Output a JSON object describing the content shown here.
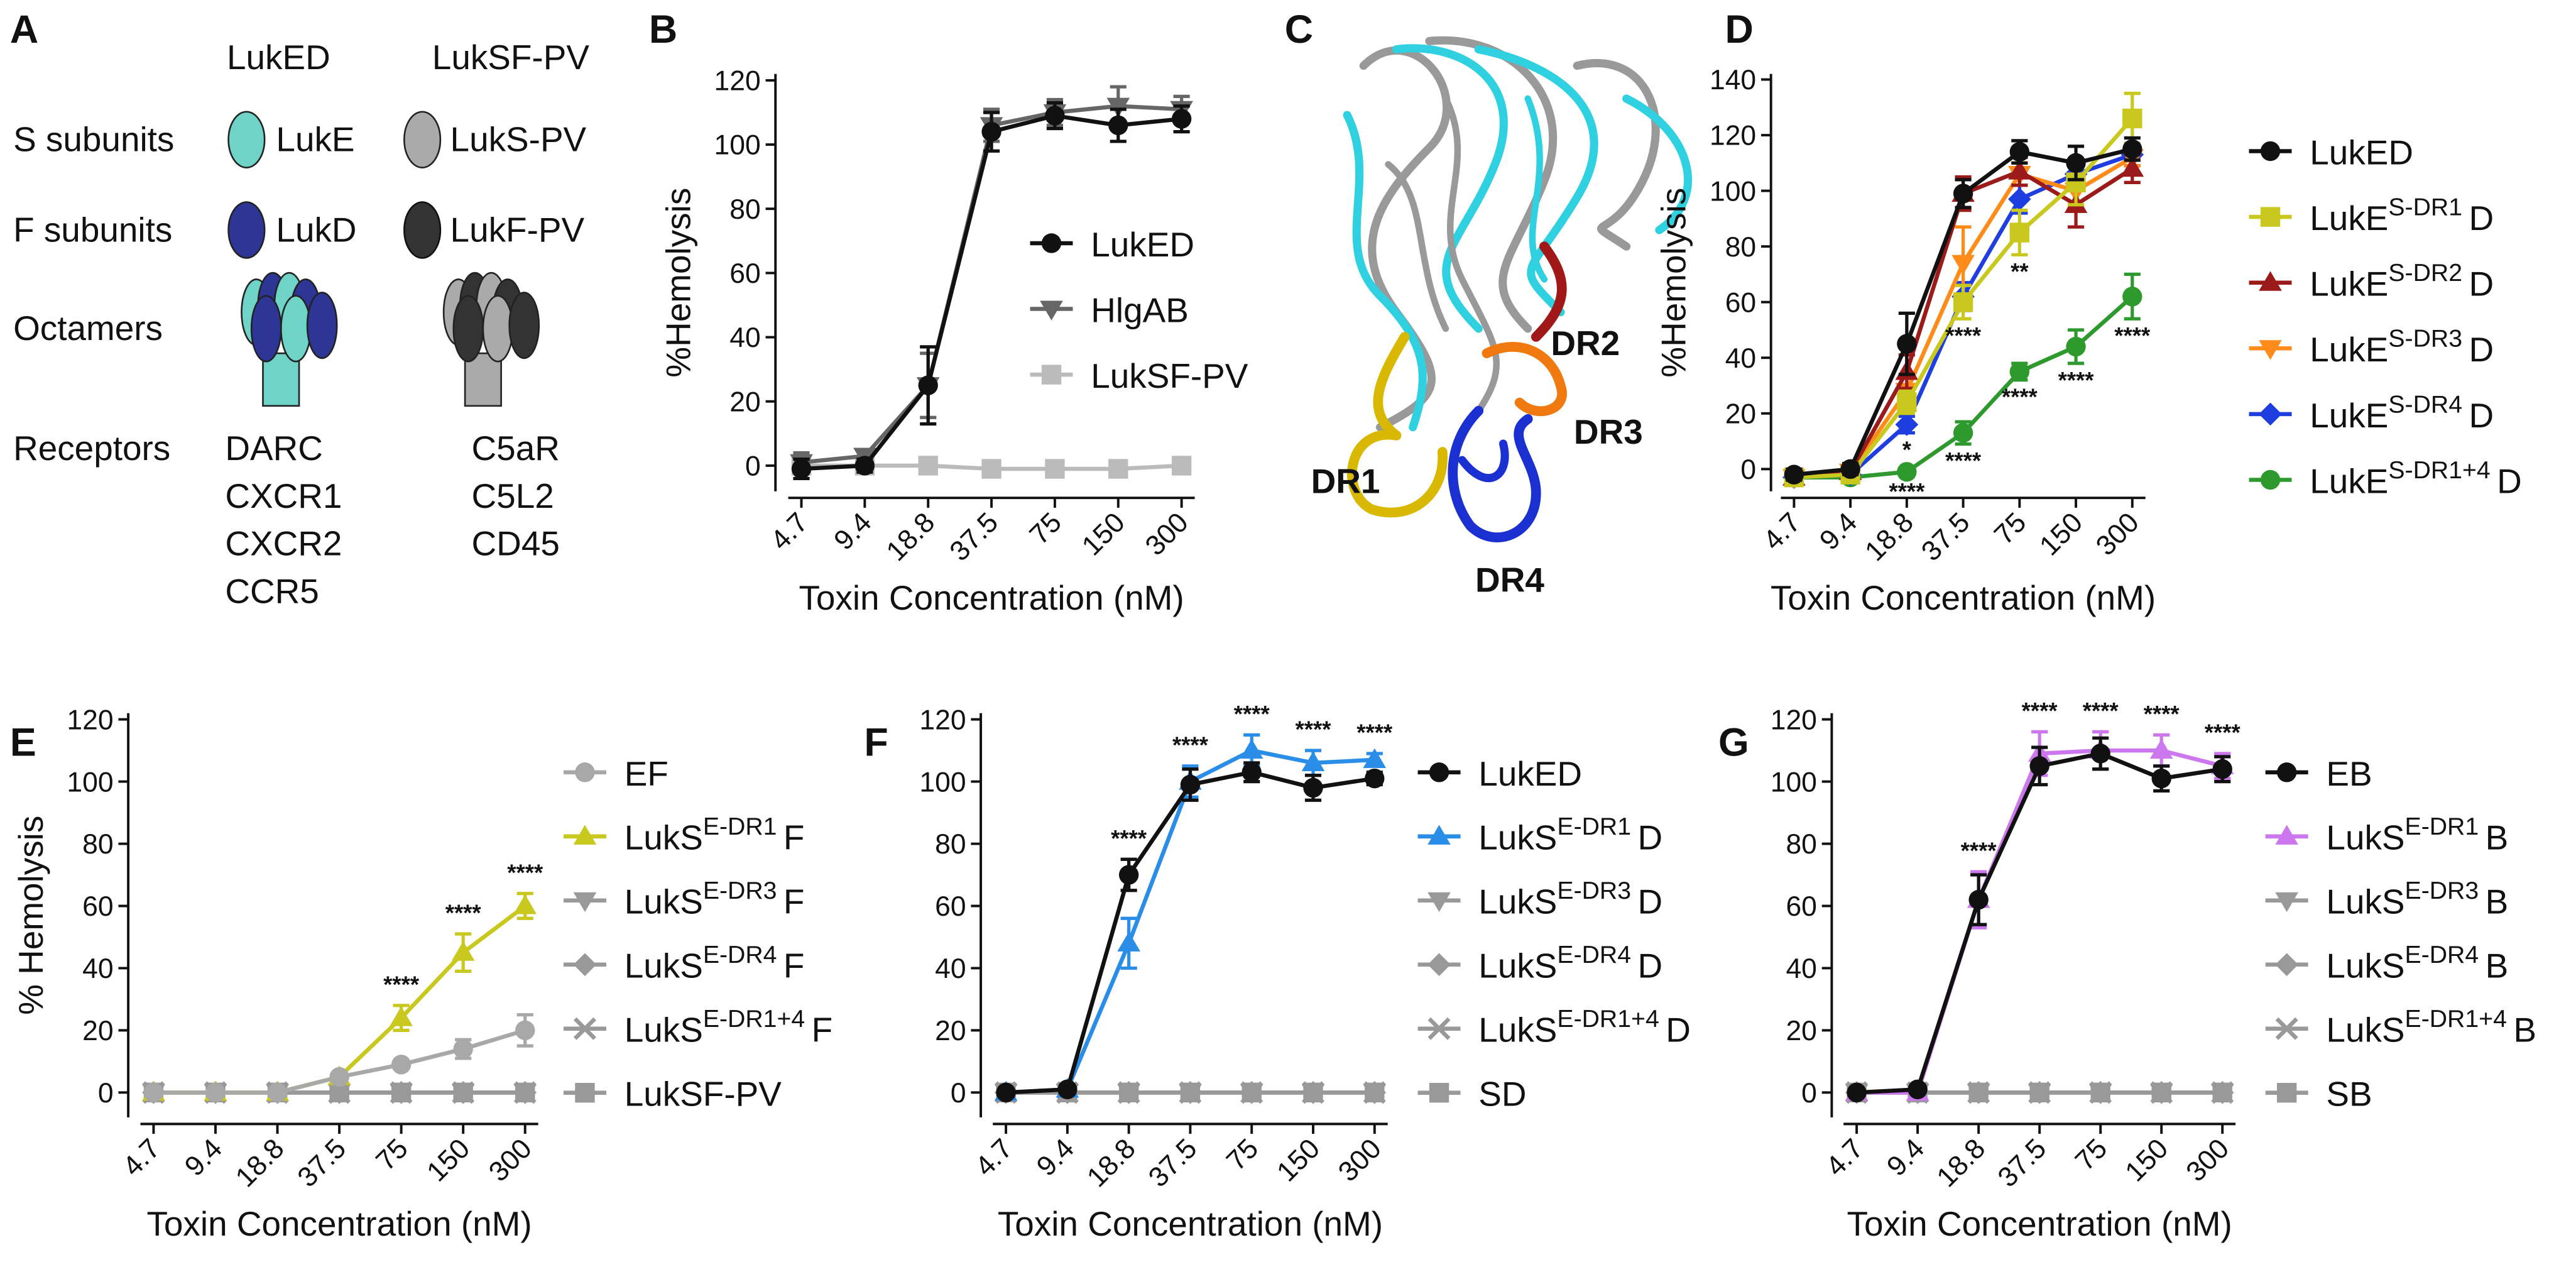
{
  "panel_a": {
    "label": "A",
    "col_heads": [
      "LukED",
      "LukSF-PV"
    ],
    "rows": [
      "S subunits",
      "F subunits",
      "Octamers",
      "Receptors"
    ],
    "s_subunits": [
      "LukE",
      "LukS-PV"
    ],
    "f_subunits": [
      "LukD",
      "LukF-PV"
    ],
    "receptors_ed": [
      "DARC",
      "CXCR1",
      "CXCR2",
      "CCR5"
    ],
    "receptors_sf": [
      "C5aR",
      "C5L2",
      "CD45"
    ]
  },
  "panel_c": {
    "label": "C",
    "regions": [
      "DR1",
      "DR2",
      "DR3",
      "DR4"
    ]
  },
  "chart_data": [
    {
      "panel": "B",
      "type": "line",
      "ylabel": "%Hemolysis",
      "xlabel": "Toxin Concentration (nM)",
      "categories": [
        "4.7",
        "9.4",
        "18.8",
        "37.5",
        "75",
        "150",
        "300"
      ],
      "ylim": [
        -8,
        122
      ],
      "yticks": [
        0,
        20,
        40,
        60,
        80,
        100,
        120
      ],
      "series": [
        {
          "name": "LukED",
          "color": "#111111",
          "marker": "circle",
          "values": [
            -1,
            0,
            25,
            104,
            109,
            106,
            108
          ],
          "errors": [
            3,
            2,
            12,
            6,
            4,
            5,
            4
          ]
        },
        {
          "name": "HlgAB",
          "color": "#666666",
          "marker": "triangle-down",
          "values": [
            1,
            3,
            25,
            106,
            110,
            112,
            111
          ],
          "errors": [
            3,
            2,
            10,
            5,
            4,
            6,
            4
          ]
        },
        {
          "name": "LukSF-PV",
          "color": "#bbbbbb",
          "marker": "square",
          "values": [
            0,
            0,
            0,
            -1,
            -1,
            -1,
            0
          ]
        }
      ]
    },
    {
      "panel": "D",
      "type": "line",
      "ylabel": "%Hemolysis",
      "xlabel": "Toxin Concentration (nM)",
      "categories": [
        "4.7",
        "9.4",
        "18.8",
        "37.5",
        "75",
        "150",
        "300"
      ],
      "ylim": [
        -8,
        142
      ],
      "yticks": [
        0,
        20,
        40,
        60,
        80,
        100,
        120,
        140
      ],
      "series": [
        {
          "name": "LukED",
          "color": "#111111",
          "marker": "circle",
          "values": [
            -2,
            0,
            45,
            99,
            114,
            110,
            115
          ],
          "errors": [
            2,
            2,
            11,
            5,
            4,
            6,
            4
          ]
        },
        {
          "name": [
            "LukE",
            "S-DR1",
            "D"
          ],
          "color": "#c8c81e",
          "marker": "square",
          "values": [
            -3,
            -2,
            24,
            60,
            85,
            103,
            126
          ],
          "errors": [
            2,
            2,
            4,
            6,
            8,
            8,
            9
          ],
          "significance": [
            null,
            null,
            null,
            "****",
            "**",
            null,
            null
          ]
        },
        {
          "name": [
            "LukE",
            "S-DR2",
            "D"
          ],
          "color": "#9b1b1b",
          "marker": "triangle-up",
          "values": [
            -3,
            -1,
            35,
            99,
            107,
            95,
            108
          ],
          "errors": [
            2,
            2,
            6,
            6,
            5,
            8,
            5
          ]
        },
        {
          "name": [
            "LukE",
            "S-DR3",
            "D"
          ],
          "color": "#ff8c1a",
          "marker": "triangle-down",
          "values": [
            -3,
            -1,
            28,
            74,
            106,
            100,
            112
          ],
          "errors": [
            2,
            2,
            5,
            13,
            4,
            6,
            3
          ]
        },
        {
          "name": [
            "LukE",
            "S-DR4",
            "D"
          ],
          "color": "#1f3ee0",
          "marker": "diamond",
          "values": [
            -3,
            -2,
            16,
            62,
            97,
            106,
            113
          ],
          "errors": [
            2,
            2,
            3,
            5,
            5,
            4,
            4
          ],
          "significance": [
            null,
            null,
            "*",
            null,
            null,
            null,
            null
          ]
        },
        {
          "name": [
            "LukE",
            "S-DR1+4",
            "D"
          ],
          "color": "#2e9a2e",
          "marker": "circle",
          "values": [
            -3,
            -3,
            -1,
            13,
            35,
            44,
            62
          ],
          "errors": [
            1,
            1,
            1,
            4,
            3,
            6,
            8
          ],
          "significance": [
            null,
            null,
            "****",
            "****",
            "****",
            "****",
            "****"
          ]
        }
      ]
    },
    {
      "panel": "E",
      "type": "line",
      "ylabel": "% Hemolysis",
      "xlabel": "Toxin Concentration (nM)",
      "categories": [
        "4.7",
        "9.4",
        "18.8",
        "37.5",
        "75",
        "150",
        "300"
      ],
      "ylim": [
        -8,
        122
      ],
      "yticks": [
        0,
        20,
        40,
        60,
        80,
        100,
        120
      ],
      "series": [
        {
          "name": "EF",
          "color": "#a8a8a8",
          "marker": "circle",
          "values": [
            0,
            0,
            0,
            5,
            9,
            14,
            20
          ],
          "errors": [
            1,
            1,
            1,
            1,
            1,
            3,
            5
          ]
        },
        {
          "name": [
            "LukS",
            "E-DR1",
            "F"
          ],
          "color": "#c8c81e",
          "marker": "triangle-up",
          "values": [
            0,
            0,
            0,
            5,
            24,
            45,
            60
          ],
          "errors": [
            1,
            1,
            1,
            1,
            4,
            6,
            4
          ],
          "significance": [
            null,
            null,
            null,
            null,
            "****",
            "****",
            "****"
          ]
        },
        {
          "name": [
            "LukS",
            "E-DR3",
            "F"
          ],
          "color": "#999999",
          "marker": "triangle-down",
          "values": [
            0,
            0,
            0,
            0,
            0,
            0,
            0
          ]
        },
        {
          "name": [
            "LukS",
            "E-DR4",
            "F"
          ],
          "color": "#999999",
          "marker": "diamond",
          "values": [
            0,
            0,
            0,
            0,
            0,
            0,
            0
          ]
        },
        {
          "name": [
            "LukS",
            "E-DR1+4",
            "F"
          ],
          "color": "#999999",
          "marker": "x",
          "values": [
            0,
            0,
            0,
            0,
            0,
            0,
            0
          ]
        },
        {
          "name": "LukSF-PV",
          "color": "#999999",
          "marker": "square",
          "values": [
            0,
            0,
            0,
            0,
            0,
            0,
            0
          ]
        }
      ]
    },
    {
      "panel": "F",
      "type": "line",
      "ylabel": "",
      "xlabel": "Toxin Concentration (nM)",
      "categories": [
        "4.7",
        "9.4",
        "18.8",
        "37.5",
        "75",
        "150",
        "300"
      ],
      "ylim": [
        -8,
        122
      ],
      "yticks": [
        0,
        20,
        40,
        60,
        80,
        100,
        120
      ],
      "series": [
        {
          "name": "LukED",
          "color": "#111111",
          "marker": "circle",
          "values": [
            0,
            1,
            70,
            99,
            103,
            98,
            101
          ],
          "errors": [
            1,
            1,
            5,
            5,
            3,
            4,
            2
          ]
        },
        {
          "name": [
            "LukS",
            "E-DR1",
            "D"
          ],
          "color": "#2a8ee8",
          "marker": "triangle-up",
          "values": [
            0,
            1,
            48,
            100,
            110,
            106,
            107
          ],
          "errors": [
            1,
            1,
            8,
            5,
            5,
            4,
            2
          ],
          "significance": [
            null,
            null,
            "****",
            "****",
            "****",
            "****",
            "****"
          ]
        },
        {
          "name": [
            "LukS",
            "E-DR3",
            "D"
          ],
          "color": "#999999",
          "marker": "triangle-down",
          "values": [
            0,
            0,
            0,
            0,
            0,
            0,
            0
          ]
        },
        {
          "name": [
            "LukS",
            "E-DR4",
            "D"
          ],
          "color": "#999999",
          "marker": "diamond",
          "values": [
            0,
            0,
            0,
            0,
            0,
            0,
            0
          ]
        },
        {
          "name": [
            "LukS",
            "E-DR1+4",
            "D"
          ],
          "color": "#999999",
          "marker": "x",
          "values": [
            0,
            0,
            0,
            0,
            0,
            0,
            0
          ]
        },
        {
          "name": "SD",
          "color": "#999999",
          "marker": "square",
          "values": [
            0,
            0,
            0,
            0,
            0,
            0,
            0
          ]
        }
      ]
    },
    {
      "panel": "G",
      "type": "line",
      "ylabel": "",
      "xlabel": "Toxin Concentration (nM)",
      "categories": [
        "4.7",
        "9.4",
        "18.8",
        "37.5",
        "75",
        "150",
        "300"
      ],
      "ylim": [
        -8,
        122
      ],
      "yticks": [
        0,
        20,
        40,
        60,
        80,
        100,
        120
      ],
      "series": [
        {
          "name": "EB",
          "color": "#111111",
          "marker": "circle",
          "values": [
            0,
            1,
            62,
            105,
            109,
            101,
            104
          ],
          "errors": [
            1,
            1,
            8,
            6,
            5,
            4,
            4
          ]
        },
        {
          "name": [
            "LukS",
            "E-DR1",
            "B"
          ],
          "color": "#cc77ee",
          "marker": "triangle-up",
          "values": [
            0,
            0,
            62,
            109,
            110,
            110,
            105
          ],
          "errors": [
            1,
            1,
            9,
            7,
            6,
            5,
            4
          ],
          "significance": [
            null,
            null,
            "****",
            "****",
            "****",
            "****",
            "****"
          ]
        },
        {
          "name": [
            "LukS",
            "E-DR3",
            "B"
          ],
          "color": "#999999",
          "marker": "triangle-down",
          "values": [
            0,
            0,
            0,
            0,
            0,
            0,
            0
          ]
        },
        {
          "name": [
            "LukS",
            "E-DR4",
            "B"
          ],
          "color": "#999999",
          "marker": "diamond",
          "values": [
            0,
            0,
            0,
            0,
            0,
            0,
            0
          ]
        },
        {
          "name": [
            "LukS",
            "E-DR1+4",
            "B"
          ],
          "color": "#999999",
          "marker": "x",
          "values": [
            0,
            0,
            0,
            0,
            0,
            0,
            0
          ]
        },
        {
          "name": "SB",
          "color": "#999999",
          "marker": "square",
          "values": [
            0,
            0,
            0,
            0,
            0,
            0,
            0
          ]
        }
      ]
    }
  ]
}
